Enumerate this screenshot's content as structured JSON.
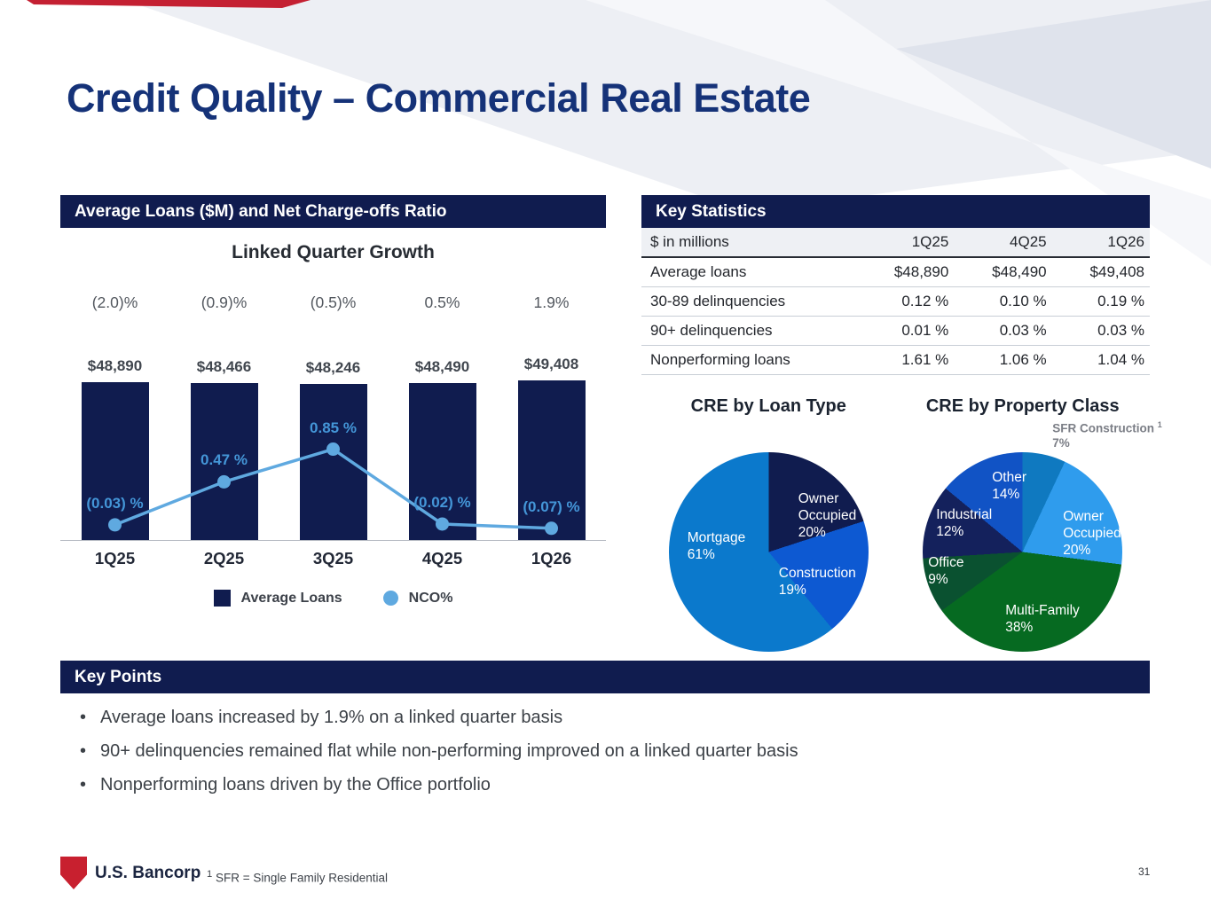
{
  "slide": {
    "title": "Credit Quality – Commercial Real Estate",
    "page_number": "31"
  },
  "colors": {
    "accent_navy": "#101c4f",
    "line_blue": "#5fa9e0",
    "title_blue": "#153278",
    "logo_red": "#c8202f"
  },
  "panels": {
    "loans": {
      "header": "Average Loans ($M) and Net Charge-offs Ratio",
      "legend": [
        {
          "label": "Average Loans",
          "color": "#101c4f",
          "shape": "square"
        },
        {
          "label": "NCO%",
          "color": "#5fa9e0",
          "shape": "circle"
        }
      ]
    },
    "stats": {
      "header": "Key Statistics"
    },
    "key_points": {
      "header": "Key Points",
      "bullets": [
        "Average loans increased by 1.9% on a linked quarter basis",
        "90+ delinquencies remained flat while non-performing improved on a linked quarter basis",
        "Nonperforming loans driven by the Office portfolio"
      ]
    }
  },
  "footer": {
    "logo_text": "U.S. Bancorp",
    "footnote_sup": "1",
    "footnote_text": "SFR = Single Family Residential"
  },
  "chart_data": [
    {
      "id": "avg_loans_and_nco",
      "type": "bar",
      "title": "Linked Quarter Growth",
      "categories": [
        "1Q25",
        "2Q25",
        "3Q25",
        "4Q25",
        "1Q26"
      ],
      "growth_labels": [
        "(2.0)%",
        "(0.9)%",
        "(0.5)%",
        "0.5%",
        "1.9%"
      ],
      "series": [
        {
          "name": "Average Loans",
          "type": "bar",
          "values": [
            48890,
            48466,
            48246,
            48490,
            49408
          ],
          "labels": [
            "$48,890",
            "$48,466",
            "$48,246",
            "$48,490",
            "$49,408"
          ],
          "color": "#101c4f"
        },
        {
          "name": "NCO%",
          "type": "line",
          "values": [
            -0.03,
            0.47,
            0.85,
            -0.02,
            -0.07
          ],
          "labels": [
            "(0.03) %",
            "0.47 %",
            "0.85 %",
            "(0.02) %",
            "(0.07) %"
          ],
          "color": "#5fa9e0"
        }
      ],
      "ylim_line": [
        -0.2,
        1.0
      ],
      "legend_position": "bottom",
      "grid": false
    },
    {
      "id": "key_statistics",
      "type": "table",
      "columns": [
        "$ in millions",
        "1Q25",
        "4Q25",
        "1Q26"
      ],
      "rows": [
        [
          "Average loans",
          "$48,890",
          "$48,490",
          "$49,408"
        ],
        [
          "30-89 delinquencies",
          "0.12 %",
          "0.10 %",
          "0.19 %"
        ],
        [
          "90+ delinquencies",
          "0.01 %",
          "0.03 %",
          "0.03 %"
        ],
        [
          "Nonperforming loans",
          "1.61 %",
          "1.06 %",
          "1.04 %"
        ]
      ]
    },
    {
      "id": "cre_by_loan_type",
      "type": "pie",
      "title": "CRE by Loan Type",
      "slices": [
        {
          "label": "Owner Occupied",
          "pct": 20,
          "pct_label": "20%",
          "color": "#101c4f"
        },
        {
          "label": "Construction",
          "pct": 19,
          "pct_label": "19%",
          "color": "#0d59d2"
        },
        {
          "label": "Mortgage",
          "pct": 61,
          "pct_label": "61%",
          "color": "#0b79cc"
        }
      ]
    },
    {
      "id": "cre_by_property_class",
      "type": "pie",
      "title": "CRE by Property Class",
      "slices": [
        {
          "label": "SFR Construction",
          "sup": "1",
          "pct": 7,
          "pct_label": "7%",
          "color": "#0f79c0"
        },
        {
          "label": "Owner Occupied",
          "pct": 20,
          "pct_label": "20%",
          "color": "#2f9ced"
        },
        {
          "label": "Multi-Family",
          "pct": 38,
          "pct_label": "38%",
          "color": "#066a21"
        },
        {
          "label": "Office",
          "pct": 9,
          "pct_label": "9%",
          "color": "#0a5130"
        },
        {
          "label": "Industrial",
          "pct": 12,
          "pct_label": "12%",
          "color": "#14215c"
        },
        {
          "label": "Other",
          "pct": 14,
          "pct_label": "14%",
          "color": "#1153c5"
        }
      ]
    }
  ]
}
